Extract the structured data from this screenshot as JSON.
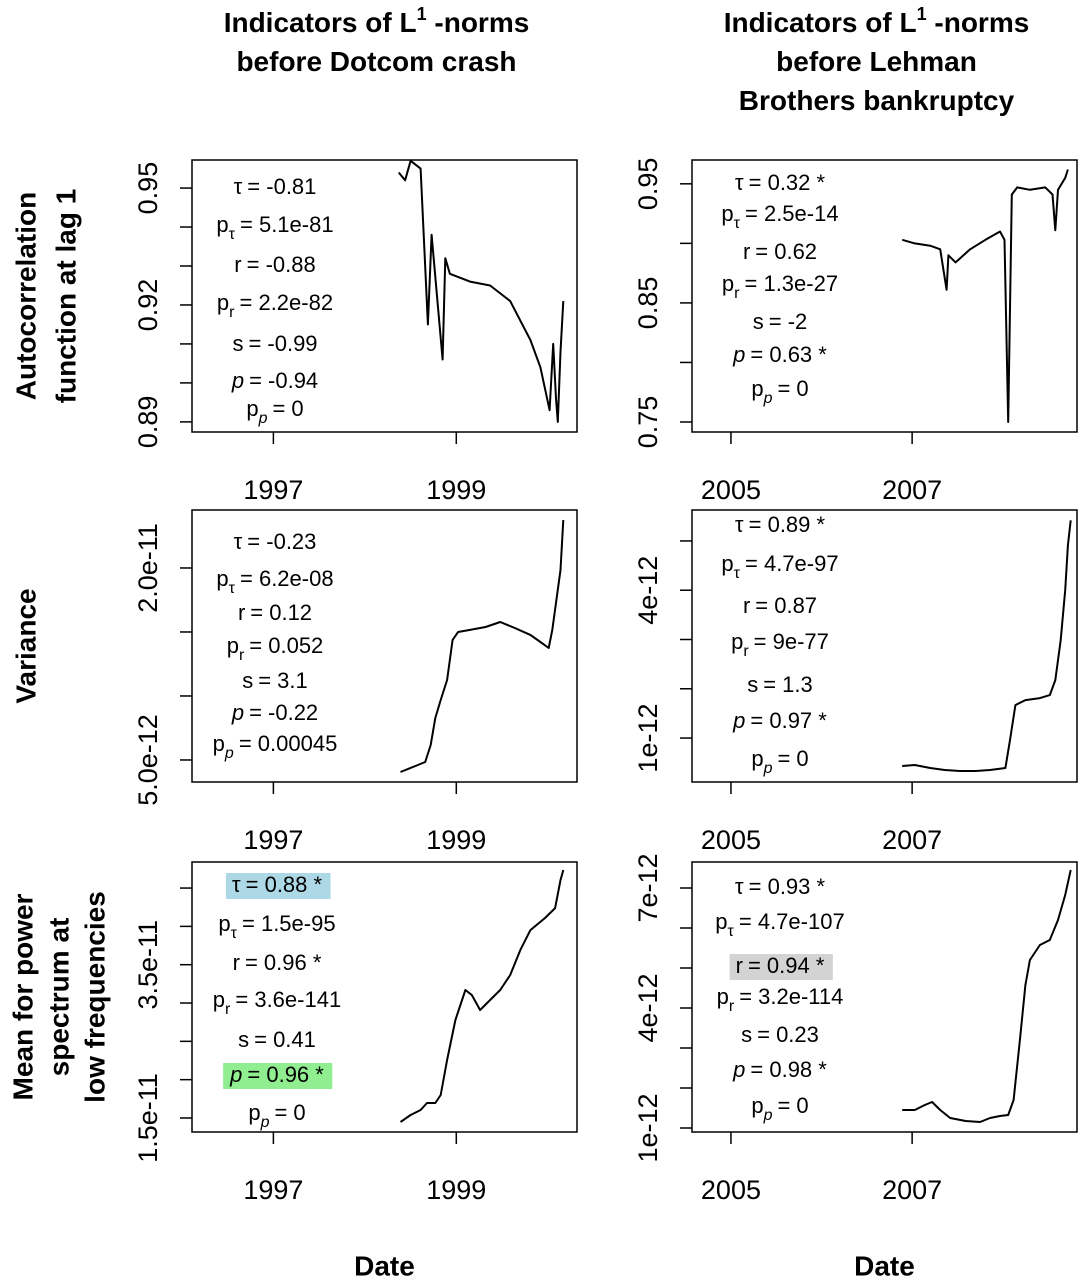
{
  "chart_data": [
    {
      "type": "line",
      "title": [
        "Indicators of L",
        "before Dotcom crash"
      ],
      "title_sup": "1",
      "title_suffix": " -norms",
      "ylabel": [
        "Autocorrelation",
        "function at lag 1"
      ],
      "x": [
        1998.37,
        1998.44,
        1998.5,
        1998.61,
        1998.69,
        1998.73,
        1998.85,
        1998.88,
        1998.93,
        1999.15,
        1999.37,
        1999.59,
        1999.7,
        1999.81,
        1999.92,
        2000.02,
        2000.06,
        2000.09,
        2000.11,
        2000.14,
        2000.17
      ],
      "values": [
        0.954,
        0.952,
        0.957,
        0.955,
        0.915,
        0.938,
        0.906,
        0.932,
        0.928,
        0.926,
        0.925,
        0.921,
        0.916,
        0.911,
        0.904,
        0.893,
        0.91,
        0.896,
        0.89,
        0.908,
        0.921
      ],
      "color": "#000000",
      "xlim": [
        1996.11,
        2000.32
      ],
      "xticks": [
        1997,
        1999
      ],
      "ylim": [
        0.8874,
        0.9572
      ],
      "yticks": [
        0.89,
        0.92,
        0.95
      ],
      "yminorticks": [
        0.9,
        0.91,
        0.93,
        0.94
      ],
      "annotations": [
        {
          "name": "τ",
          "text": "= -0.81"
        },
        {
          "name": "p",
          "sub": "τ",
          "text": "= 5.1e-81"
        },
        {
          "name": "r",
          "text": "= -0.88"
        },
        {
          "name": "p",
          "sub": "r",
          "text": "= 2.2e-82"
        },
        {
          "name": "s",
          "text": "= -0.99"
        },
        {
          "name": "p",
          "italic": true,
          "text": "= -0.94"
        },
        {
          "name": "p",
          "sub": "p",
          "sub_italic": true,
          "text": "= 0"
        }
      ]
    },
    {
      "type": "line",
      "title": [
        "Indicators of L",
        "before Lehman",
        "Brothers bankruptcy"
      ],
      "title_sup": "1",
      "title_suffix": " -norms",
      "x": [
        2006.89,
        2007.03,
        2007.2,
        2007.31,
        2007.38,
        2007.4,
        2007.48,
        2007.64,
        2007.81,
        2007.97,
        2008.02,
        2008.06,
        2008.1,
        2008.16,
        2008.3,
        2008.47,
        2008.55,
        2008.58,
        2008.61,
        2008.69,
        2008.72
      ],
      "values": [
        0.903,
        0.9,
        0.898,
        0.895,
        0.861,
        0.89,
        0.884,
        0.895,
        0.903,
        0.91,
        0.903,
        0.75,
        0.941,
        0.947,
        0.945,
        0.947,
        0.941,
        0.911,
        0.945,
        0.955,
        0.962
      ],
      "color": "#000000",
      "xlim": [
        2004.57,
        2008.82
      ],
      "xticks": [
        2005,
        2007
      ],
      "ylim": [
        0.7416,
        0.97
      ],
      "yticks": [
        0.75,
        0.85,
        0.95
      ],
      "yminorticks": [
        0.8,
        0.9
      ],
      "annotations": [
        {
          "name": "τ",
          "text": "= 0.32 *"
        },
        {
          "name": "p",
          "sub": "τ",
          "text": "= 2.5e-14"
        },
        {
          "name": "r",
          "text": "= 0.62"
        },
        {
          "name": "p",
          "sub": "r",
          "text": "= 1.3e-27"
        },
        {
          "name": "s",
          "text": "= -2"
        },
        {
          "name": "p",
          "italic": true,
          "text": "= 0.63 *"
        },
        {
          "name": "p",
          "sub": "p",
          "sub_italic": true,
          "text": "= 0"
        }
      ]
    },
    {
      "type": "line",
      "ylabel": [
        "Variance"
      ],
      "x": [
        1998.39,
        1998.5,
        1998.58,
        1998.66,
        1998.72,
        1998.77,
        1998.83,
        1998.9,
        1998.96,
        1999.02,
        1999.15,
        1999.32,
        1999.48,
        1999.64,
        1999.81,
        1999.92,
        2000.01,
        2000.05,
        2000.09,
        2000.14,
        2000.17
      ],
      "values": [
        4.06e-12,
        4.38e-12,
        4.61e-12,
        4.84e-12,
        6.17e-12,
        8.28e-12,
        9.69e-12,
        1.125e-11,
        1.438e-11,
        1.5e-11,
        1.516e-11,
        1.539e-11,
        1.578e-11,
        1.531e-11,
        1.477e-11,
        1.422e-11,
        1.375e-11,
        1.516e-11,
        1.727e-11,
        1.984e-11,
        2.375e-11
      ],
      "color": "#000000",
      "xlim": [
        1996.11,
        2000.32
      ],
      "xticks": [
        1997,
        1999
      ],
      "ylim": [
        3.28e-12,
        2.453e-11
      ],
      "yticks": [
        {
          "value": 5e-12,
          "label": "5.0e-12"
        },
        {
          "value": 2e-11,
          "label": "2.0e-11"
        }
      ],
      "yminorticks": [
        1e-11,
        1.5e-11
      ],
      "annotations": [
        {
          "name": "τ",
          "text": "= -0.23"
        },
        {
          "name": "p",
          "sub": "τ",
          "text": "= 6.2e-08"
        },
        {
          "name": "r",
          "text": "= 0.12"
        },
        {
          "name": "p",
          "sub": "r",
          "text": "= 0.052"
        },
        {
          "name": "s",
          "text": "= 3.1"
        },
        {
          "name": "p",
          "italic": true,
          "text": "= -0.22"
        },
        {
          "name": "p",
          "sub": "p",
          "sub_italic": true,
          "text": "= 0.00045"
        }
      ]
    },
    {
      "type": "line",
      "x": [
        2006.89,
        2007.03,
        2007.2,
        2007.36,
        2007.53,
        2007.7,
        2007.86,
        2008.03,
        2008.08,
        2008.14,
        2008.25,
        2008.41,
        2008.52,
        2008.58,
        2008.64,
        2008.69,
        2008.72,
        2008.75
      ],
      "values": [
        4.32e-13,
        4.53e-13,
        3.92e-13,
        3.51e-13,
        3.31e-13,
        3.31e-13,
        3.51e-13,
        3.92e-13,
        9.59e-13,
        1.669e-12,
        1.77e-12,
        1.811e-12,
        1.872e-12,
        2.176e-12,
        2.987e-12,
        4e-12,
        4.912e-12,
        5.419e-12
      ],
      "color": "#000000",
      "xlim": [
        2004.57,
        2008.82
      ],
      "xticks": [
        2005,
        2007
      ],
      "ylim": [
        1.08e-13,
        5.628e-12
      ],
      "yticks": [
        1e-12,
        4e-12
      ],
      "yminorticks": [
        2e-12,
        3e-12,
        5e-12
      ],
      "annotations": [
        {
          "name": "τ",
          "text": "= 0.89 *"
        },
        {
          "name": "p",
          "sub": "τ",
          "text": "= 4.7e-97"
        },
        {
          "name": "r",
          "text": "= 0.87"
        },
        {
          "name": "p",
          "sub": "r",
          "text": "= 9e-77"
        },
        {
          "name": "s",
          "text": "= 1.3"
        },
        {
          "name": "p",
          "italic": true,
          "text": "= 0.97 *"
        },
        {
          "name": "p",
          "sub": "p",
          "sub_italic": true,
          "text": "= 0"
        }
      ]
    },
    {
      "type": "line",
      "ylabel": [
        "Mean for power",
        "spectrum  at",
        "low frequencies"
      ],
      "xlabel": "Date",
      "x": [
        1998.39,
        1998.5,
        1998.61,
        1998.68,
        1998.77,
        1998.83,
        1998.9,
        1998.99,
        1999.1,
        1999.17,
        1999.26,
        1999.37,
        1999.48,
        1999.59,
        1999.7,
        1999.81,
        1999.97,
        2000.08,
        2000.14,
        2000.17
      ],
      "values": [
        1.448e-11,
        1.539e-11,
        1.604e-11,
        1.696e-11,
        1.696e-11,
        1.8e-11,
        2.256e-11,
        2.778e-11,
        3.17e-11,
        3.104e-11,
        2.909e-11,
        3.039e-11,
        3.17e-11,
        3.365e-11,
        3.691e-11,
        3.952e-11,
        4.109e-11,
        4.239e-11,
        4.604e-11,
        4.735e-11
      ],
      "color": "#000000",
      "xlim": [
        1996.11,
        2000.32
      ],
      "xticks": [
        1997,
        1999
      ],
      "ylim": [
        1.317e-11,
        4.84e-11
      ],
      "yticks": [
        1.5e-11,
        3.5e-11
      ],
      "yminorticks": [
        2e-11,
        2.5e-11,
        3e-11,
        4e-11,
        4.5e-11
      ],
      "annotations": [
        {
          "name": "τ",
          "text": "= 0.88 *",
          "highlight": "#add8e6"
        },
        {
          "name": "p",
          "sub": "τ",
          "text": "= 1.5e-95"
        },
        {
          "name": "r",
          "text": "= 0.96 *"
        },
        {
          "name": "p",
          "sub": "r",
          "text": "= 3.6e-141"
        },
        {
          "name": "s",
          "text": "= 0.41"
        },
        {
          "name": "p",
          "italic": true,
          "text": "= 0.96 *",
          "highlight": "#90ee90"
        },
        {
          "name": "p",
          "sub": "p",
          "sub_italic": true,
          "text": "= 0"
        }
      ]
    },
    {
      "type": "line",
      "xlabel": "Date",
      "x": [
        2006.89,
        2007.03,
        2007.14,
        2007.22,
        2007.31,
        2007.42,
        2007.59,
        2007.75,
        2007.86,
        2007.97,
        2008.06,
        2008.12,
        2008.19,
        2008.25,
        2008.3,
        2008.41,
        2008.52,
        2008.61,
        2008.69,
        2008.75
      ],
      "values": [
        1.45e-12,
        1.45e-12,
        1.575e-12,
        1.65e-12,
        1.45e-12,
        1.25e-12,
        1.175e-12,
        1.15e-12,
        1.25e-12,
        1.3e-12,
        1.325e-12,
        1.7e-12,
        3.2e-12,
        4.575e-12,
        5.2e-12,
        5.575e-12,
        5.7e-12,
        6.2e-12,
        6.825e-12,
        7.45e-12
      ],
      "color": "#000000",
      "xlim": [
        2004.57,
        2008.82
      ],
      "xticks": [
        2005,
        2007
      ],
      "ylim": [
        9e-13,
        7.65e-12
      ],
      "yticks": [
        1e-12,
        4e-12,
        7e-12
      ],
      "yminorticks": [
        2e-12,
        3e-12,
        5e-12,
        6e-12
      ],
      "annotations": [
        {
          "name": "τ",
          "text": "= 0.93 *"
        },
        {
          "name": "p",
          "sub": "τ",
          "text": "= 4.7e-107"
        },
        {
          "name": "r",
          "text": "= 0.94 *",
          "highlight": "#d3d3d3"
        },
        {
          "name": "p",
          "sub": "r",
          "text": "= 3.2e-114"
        },
        {
          "name": "s",
          "text": "= 0.23"
        },
        {
          "name": "p",
          "italic": true,
          "text": "= 0.98 *"
        },
        {
          "name": "p",
          "sub": "p",
          "sub_italic": true,
          "text": "= 0"
        }
      ]
    }
  ]
}
